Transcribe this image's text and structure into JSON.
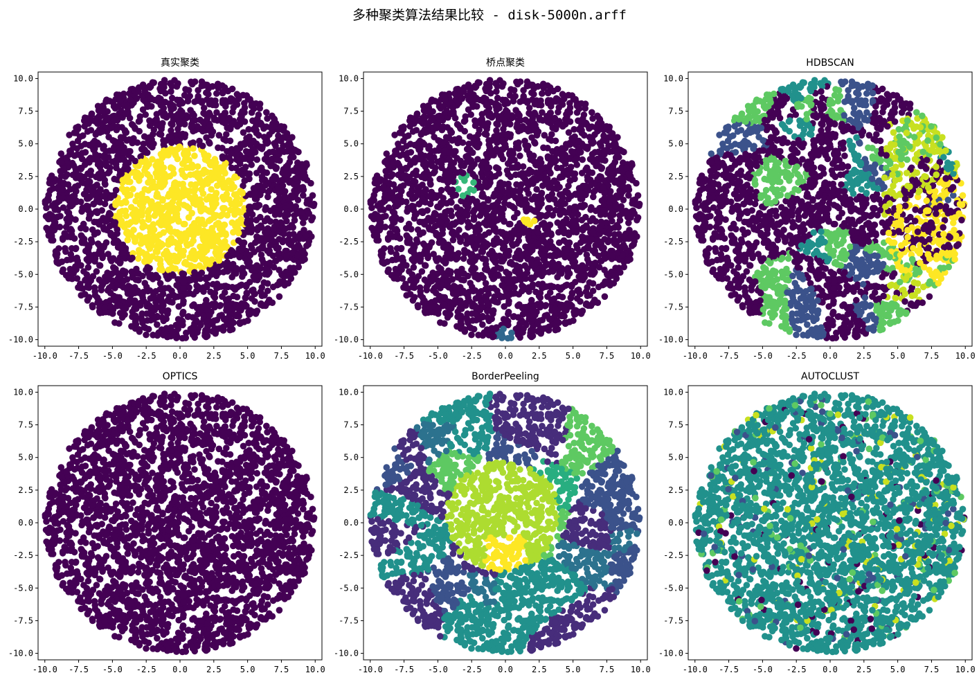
{
  "figure": {
    "title": "多种聚类算法结果比较 - disk-5000n.arff"
  },
  "chart_data": [
    {
      "type": "scatter",
      "title": "真实聚类",
      "xlim": [
        -10.5,
        10.5
      ],
      "ylim": [
        -10.5,
        10.5
      ],
      "xticks": [
        "-10.0",
        "-7.5",
        "-5.0",
        "-2.5",
        "0.0",
        "2.5",
        "5.0",
        "7.5",
        "10.0"
      ],
      "yticks": [
        "10.0",
        "7.5",
        "5.0",
        "2.5",
        "0.0",
        "-2.5",
        "-5.0",
        "-7.5",
        "-10.0"
      ],
      "series": [
        {
          "region": "outer ring r 5.0–10.0",
          "color": "#440154"
        },
        {
          "region": "inner disk r 0–5.0",
          "color": "#fde725"
        }
      ]
    },
    {
      "type": "scatter",
      "title": "桥点聚类",
      "xlim": [
        -10.5,
        10.5
      ],
      "ylim": [
        -10.5,
        10.5
      ],
      "xticks": [
        "-10.0",
        "-7.5",
        "-5.0",
        "-2.5",
        "0.0",
        "2.5",
        "5.0",
        "7.5",
        "10.0"
      ],
      "yticks": [
        "10.0",
        "7.5",
        "5.0",
        "2.5",
        "0.0",
        "-2.5",
        "-5.0",
        "-7.5",
        "-10.0"
      ],
      "series": [
        {
          "region": "full disk r 0–10.0",
          "color": "#440154"
        },
        {
          "region": "small cluster near (-3, 1.8)",
          "color": "#35b779"
        },
        {
          "region": "small cluster near (1.7, -1.0)",
          "color": "#fde725"
        },
        {
          "region": "small cluster near (0, -9.7)",
          "color": "#31688e"
        }
      ]
    },
    {
      "type": "scatter",
      "title": "HDBSCAN",
      "xlim": [
        -10.5,
        10.5
      ],
      "ylim": [
        -10.5,
        10.5
      ],
      "xticks": [
        "-10.0",
        "-7.5",
        "-5.0",
        "-2.5",
        "0.0",
        "2.5",
        "5.0",
        "7.5",
        "10.0"
      ],
      "yticks": [
        "10.0",
        "7.5",
        "5.0",
        "2.5",
        "0.0",
        "-2.5",
        "-5.0",
        "-7.5",
        "-10.0"
      ],
      "series": [
        {
          "region": "noise / many small clusters over full disk",
          "color": "#440154"
        },
        {
          "region": "clusters",
          "color": "#3b528b"
        },
        {
          "region": "clusters",
          "color": "#21918c"
        },
        {
          "region": "clusters",
          "color": "#5ec962"
        },
        {
          "region": "clusters (right side)",
          "color": "#c8e020"
        },
        {
          "region": "clusters (right side)",
          "color": "#fde725"
        }
      ]
    },
    {
      "type": "scatter",
      "title": "OPTICS",
      "xlim": [
        -10.5,
        10.5
      ],
      "ylim": [
        -10.5,
        10.5
      ],
      "xticks": [
        "-10.0",
        "-7.5",
        "-5.0",
        "-2.5",
        "0.0",
        "2.5",
        "5.0",
        "7.5",
        "10.0"
      ],
      "yticks": [
        "10.0",
        "7.5",
        "5.0",
        "2.5",
        "0.0",
        "-2.5",
        "-5.0",
        "-7.5",
        "-10.0"
      ],
      "series": [
        {
          "region": "full disk r 0–10.0",
          "color": "#440154"
        }
      ]
    },
    {
      "type": "scatter",
      "title": "BorderPeeling",
      "xlim": [
        -10.5,
        10.5
      ],
      "ylim": [
        -10.5,
        10.5
      ],
      "xticks": [
        "-10.0",
        "-7.5",
        "-5.0",
        "-2.5",
        "0.0",
        "2.5",
        "5.0",
        "7.5",
        "10.0"
      ],
      "yticks": [
        "10.0",
        "7.5",
        "5.0",
        "2.5",
        "0.0",
        "-2.5",
        "-5.0",
        "-7.5",
        "-10.0"
      ],
      "series": [
        {
          "region": "outer patches",
          "color": "#472d7b"
        },
        {
          "region": "outer patches",
          "color": "#3b528b"
        },
        {
          "region": "outer patches",
          "color": "#2c728e"
        },
        {
          "region": "outer patches",
          "color": "#21918c"
        },
        {
          "region": "outer patches",
          "color": "#28ae80"
        },
        {
          "region": "outer patches",
          "color": "#5ec962"
        },
        {
          "region": "center",
          "color": "#addc30"
        },
        {
          "region": "center",
          "color": "#fde725"
        }
      ]
    },
    {
      "type": "scatter",
      "title": "AUTOCLUST",
      "xlim": [
        -10.5,
        10.5
      ],
      "ylim": [
        -10.5,
        10.5
      ],
      "xticks": [
        "-10.0",
        "-7.5",
        "-5.0",
        "-2.5",
        "0.0",
        "2.5",
        "5.0",
        "7.5",
        "10.0"
      ],
      "yticks": [
        "10.0",
        "7.5",
        "5.0",
        "2.5",
        "0.0",
        "-2.5",
        "-5.0",
        "-7.5",
        "-10.0"
      ],
      "series": [
        {
          "region": "main cluster full disk",
          "color": "#21918c"
        },
        {
          "region": "scattered",
          "color": "#440154"
        },
        {
          "region": "scattered",
          "color": "#3b528b"
        },
        {
          "region": "scattered",
          "color": "#5ec962"
        },
        {
          "region": "scattered",
          "color": "#c8e020"
        }
      ]
    }
  ]
}
